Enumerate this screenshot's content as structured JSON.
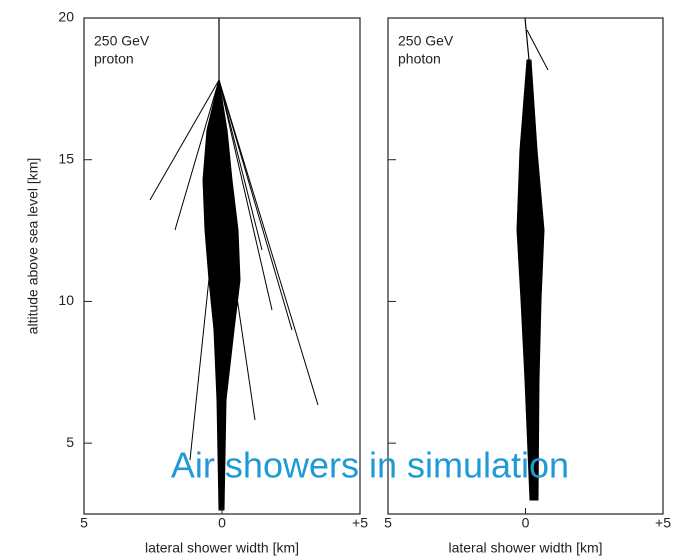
{
  "caption": "Air showers in simulation",
  "chart_data": [
    {
      "type": "shower",
      "annotation": [
        "250 GeV",
        "proton"
      ],
      "xlabel": "lateral shower width [km]",
      "ylabel": "altitude above sea level [km]",
      "xlim": [
        -5,
        5
      ],
      "xticks": [
        {
          "value": -5,
          "label": "5"
        },
        0,
        {
          "value": 5,
          "label": "+5"
        }
      ],
      "ylim": [
        2.5,
        20
      ],
      "yticks": [
        5,
        10,
        15,
        20
      ],
      "ytick_labels": true
    },
    {
      "type": "shower",
      "annotation": [
        "250 GeV",
        "photon"
      ],
      "xlabel": "lateral shower width [km]",
      "xlim": [
        -5,
        5
      ],
      "xticks": [
        {
          "value": -5,
          "label": "5"
        },
        0,
        {
          "value": 5,
          "label": "+5"
        }
      ],
      "ylim": [
        2.5,
        20
      ],
      "yticks": [
        5,
        10,
        15,
        20
      ],
      "ytick_labels": false
    }
  ]
}
